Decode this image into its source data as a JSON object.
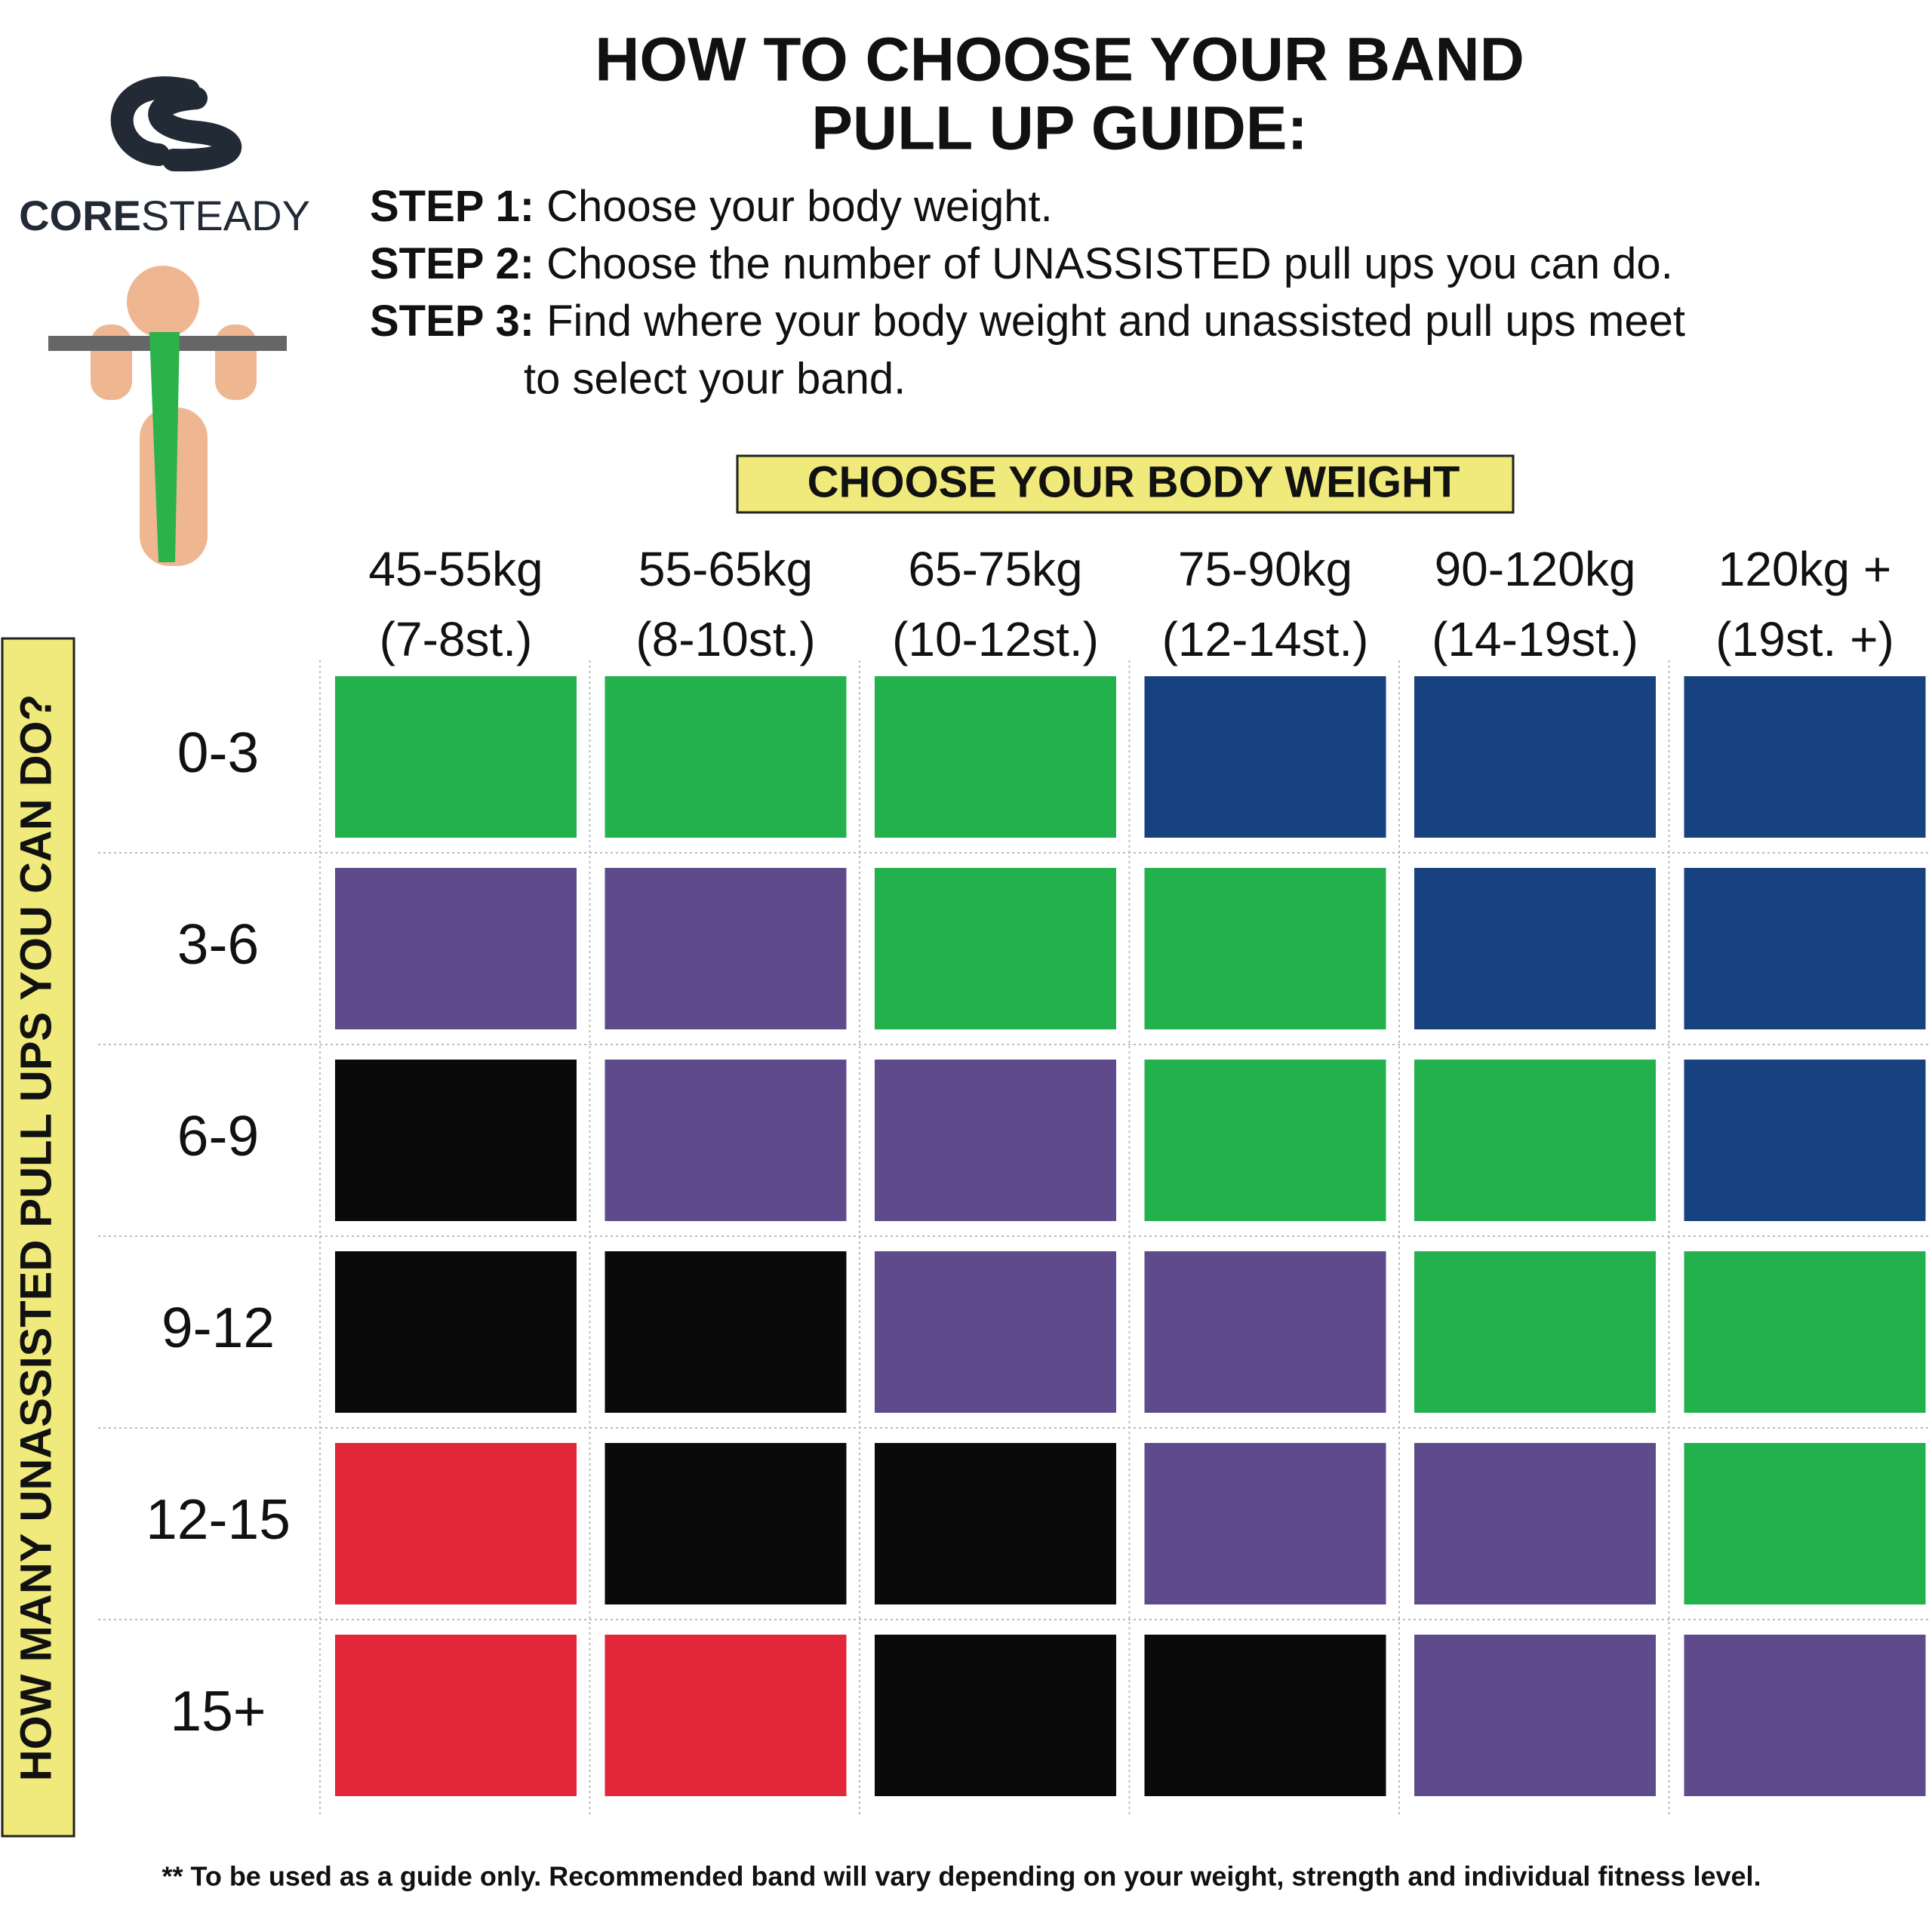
{
  "logo": {
    "bold": "CORE",
    "light": "STEADY"
  },
  "header": {
    "title_line1": "HOW TO CHOOSE YOUR BAND",
    "title_line2": "PULL UP GUIDE:"
  },
  "steps": [
    {
      "label": "STEP 1:",
      "text": "Choose your body weight."
    },
    {
      "label": "STEP 2:",
      "text": "Choose the number of UNASSISTED pull ups you can do."
    },
    {
      "label": "STEP 3:",
      "text": "Find where your body weight and unassisted pull ups meet",
      "continuation": "to select your band."
    }
  ],
  "table": {
    "column_title": "CHOOSE YOUR BODY WEIGHT",
    "row_title": "HOW MANY UNASSISTED PULL UPS YOU CAN DO?",
    "columns": [
      {
        "kg": "45-55kg",
        "st": "(7-8st.)"
      },
      {
        "kg": "55-65kg",
        "st": "(8-10st.)"
      },
      {
        "kg": "65-75kg",
        "st": "(10-12st.)"
      },
      {
        "kg": "75-90kg",
        "st": "(12-14st.)"
      },
      {
        "kg": "90-120kg",
        "st": "(14-19st.)"
      },
      {
        "kg": "120kg +",
        "st": "(19st. +)"
      }
    ],
    "rows": [
      {
        "label": "0-3",
        "cells": [
          "#23b14d",
          "#23b14d",
          "#23b14d",
          "#17427f",
          "#17427f",
          "#17427f"
        ]
      },
      {
        "label": "3-6",
        "cells": [
          "#5f4b8b",
          "#5f4b8b",
          "#23b14d",
          "#23b14d",
          "#17427f",
          "#17427f"
        ]
      },
      {
        "label": "6-9",
        "cells": [
          "#0a0a0a",
          "#5f4b8b",
          "#5f4b8b",
          "#23b14d",
          "#23b14d",
          "#17427f"
        ]
      },
      {
        "label": "9-12",
        "cells": [
          "#0a0a0a",
          "#0a0a0a",
          "#5f4b8b",
          "#5f4b8b",
          "#23b14d",
          "#23b14d"
        ]
      },
      {
        "label": "12-15",
        "cells": [
          "#e2273b",
          "#0a0a0a",
          "#0a0a0a",
          "#5f4b8b",
          "#5f4b8b",
          "#23b14d"
        ]
      },
      {
        "label": "15+",
        "cells": [
          "#e2273b",
          "#e2273b",
          "#0a0a0a",
          "#0a0a0a",
          "#5f4b8b",
          "#5f4b8b"
        ]
      }
    ]
  },
  "footnote": "** To be used as a guide only. Recommended band will vary depending on your weight, strength and individual fitness level."
}
